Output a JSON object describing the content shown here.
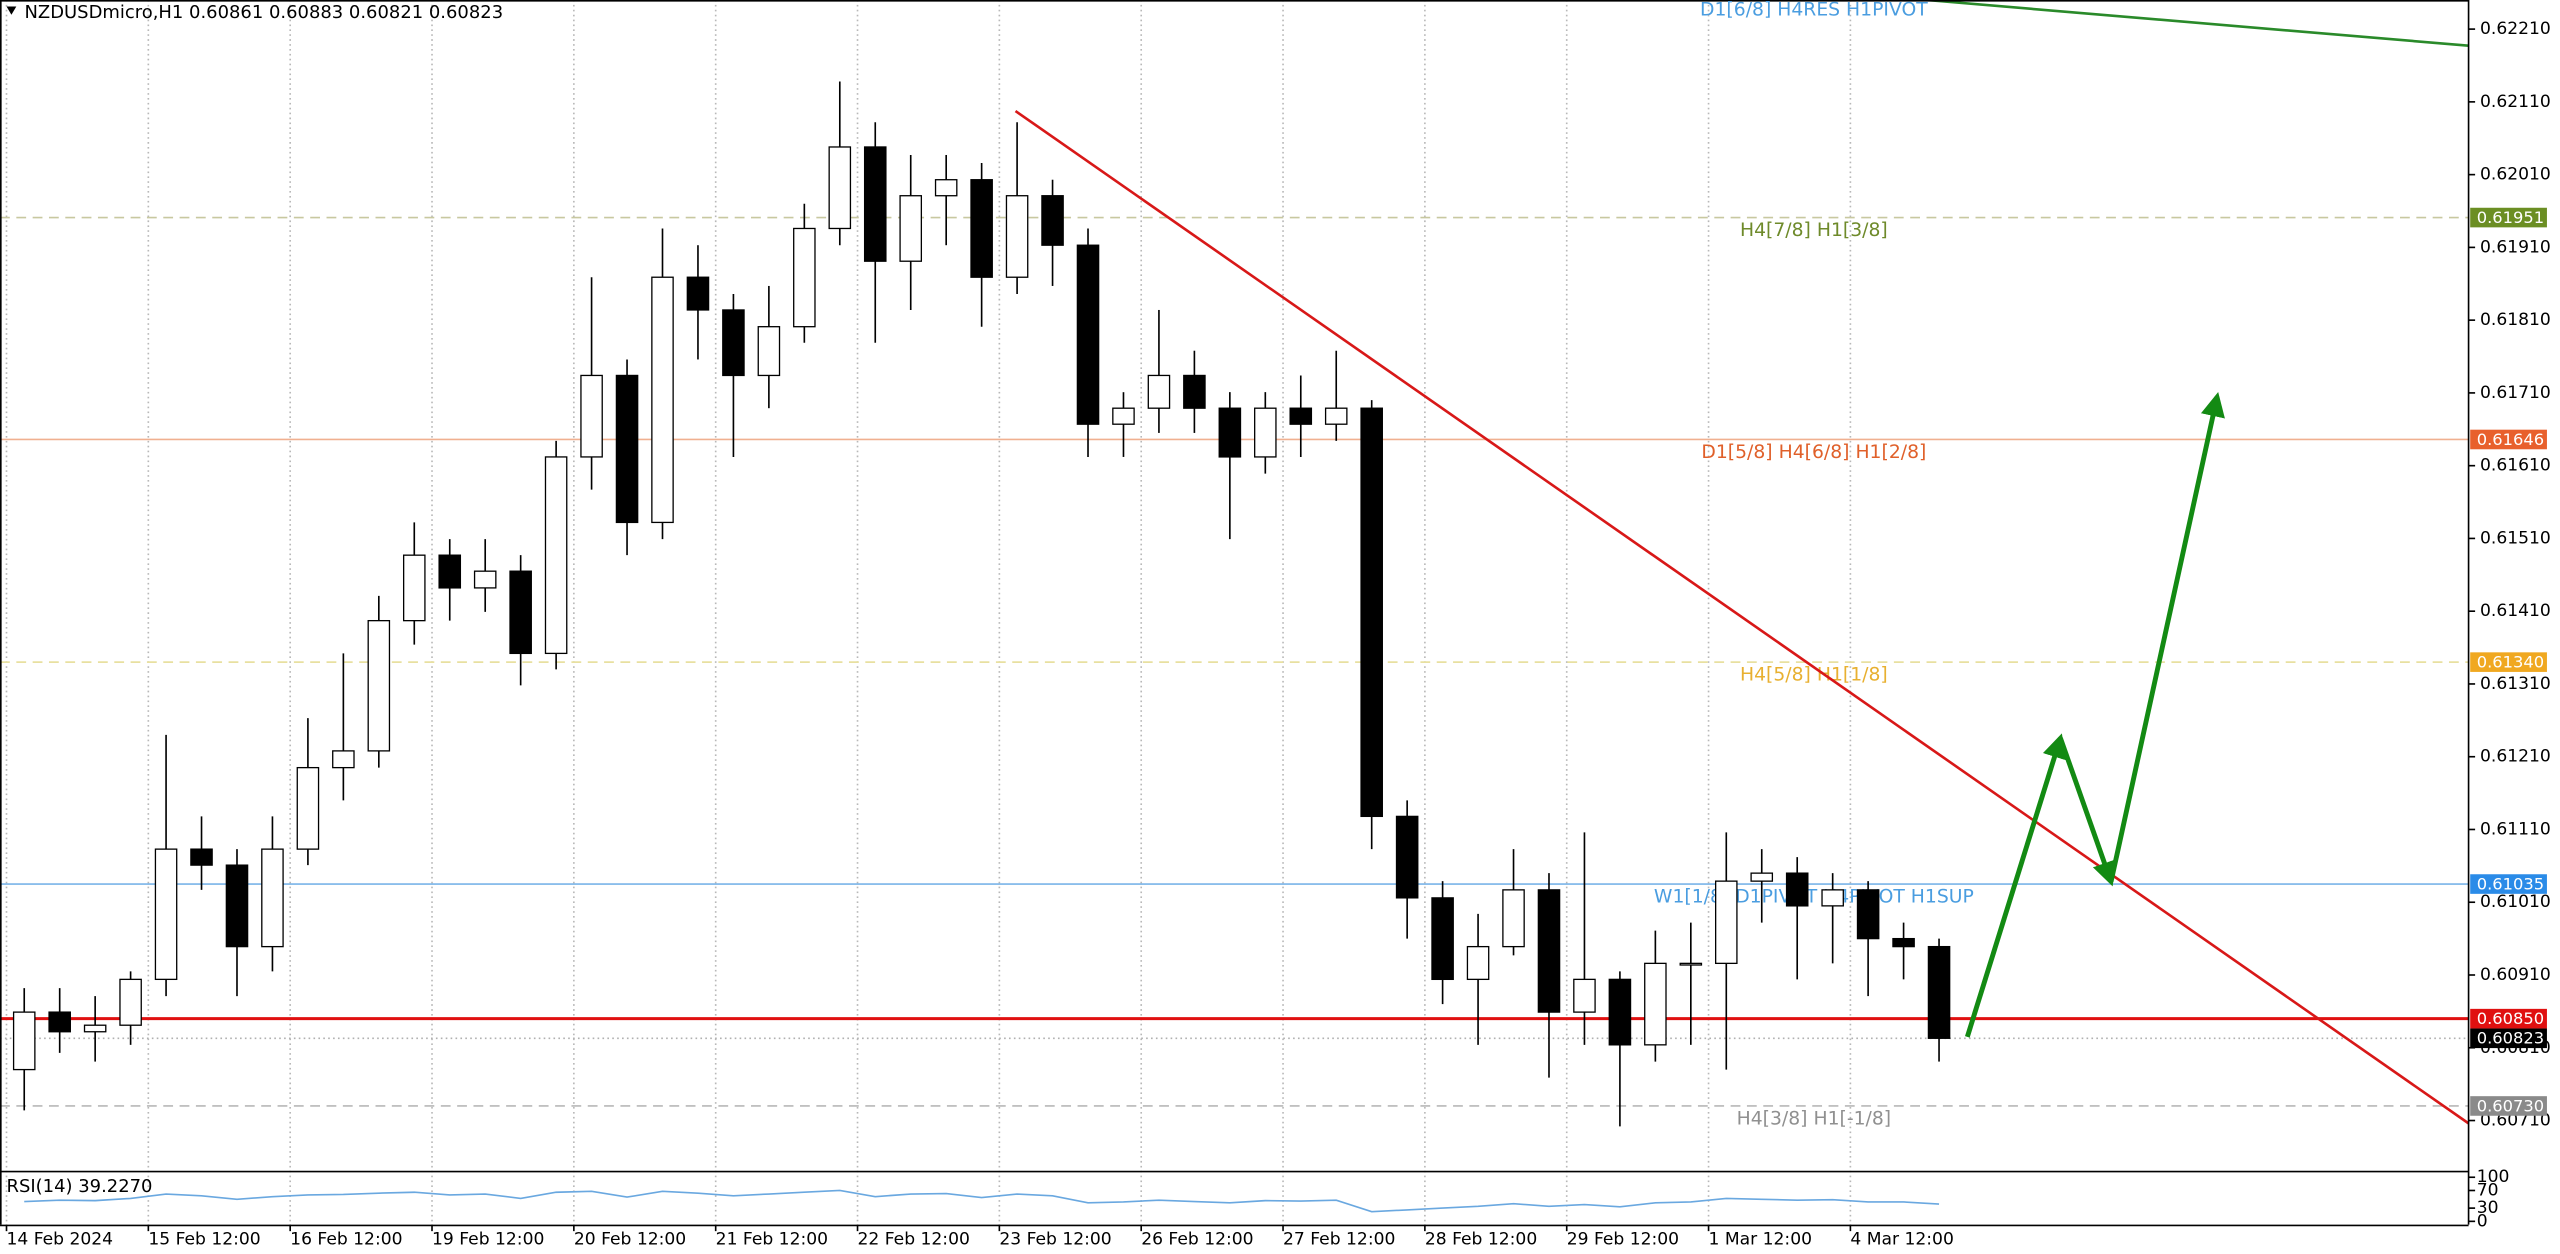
{
  "chart_data": {
    "type": "candlestick",
    "title": "NZDUSDmicro,H1  0.60861 0.60883 0.60821 0.60823",
    "x": [
      3,
      9,
      15,
      21,
      27,
      33,
      39,
      45,
      51,
      57,
      63,
      69,
      75,
      81,
      87,
      93,
      99,
      105,
      111,
      117,
      123,
      129,
      135,
      141,
      147,
      153,
      159,
      165,
      171,
      177,
      183,
      189,
      195,
      201,
      207,
      213,
      219,
      225,
      231,
      237,
      243,
      249,
      255,
      261,
      267,
      273,
      279,
      285,
      291,
      297,
      303,
      309,
      315,
      321,
      327
    ],
    "open": [
      0.6078,
      0.60859,
      0.60832,
      0.60841,
      0.60904,
      0.61083,
      0.61061,
      0.60949,
      0.61083,
      0.61195,
      0.61218,
      0.61397,
      0.61487,
      0.61442,
      0.61465,
      0.61352,
      0.61622,
      0.61734,
      0.61532,
      0.61869,
      0.61824,
      0.61734,
      0.61801,
      0.61936,
      0.62048,
      0.61891,
      0.61981,
      0.62003,
      0.61869,
      0.61981,
      0.61913,
      0.61667,
      0.61689,
      0.61734,
      0.61689,
      0.61622,
      0.61689,
      0.61667,
      0.61689,
      0.61128,
      0.61016,
      0.60904,
      0.60949,
      0.61027,
      0.60859,
      0.60904,
      0.60814,
      0.60926,
      0.60926,
      0.61039,
      0.6105,
      0.61005,
      0.61027,
      0.6096,
      0.60949
    ],
    "high": [
      0.60892,
      0.60892,
      0.60881,
      0.60915,
      0.6124,
      0.61128,
      0.61083,
      0.61128,
      0.61263,
      0.61352,
      0.61431,
      0.61532,
      0.61509,
      0.61509,
      0.61487,
      0.61644,
      0.61869,
      0.61756,
      0.61936,
      0.61913,
      0.61846,
      0.61857,
      0.6197,
      0.62138,
      0.62082,
      0.62037,
      0.62037,
      0.62026,
      0.62082,
      0.62003,
      0.61936,
      0.61711,
      0.61824,
      0.61768,
      0.61711,
      0.61711,
      0.61734,
      0.61768,
      0.617,
      0.6115,
      0.61039,
      0.60994,
      0.61083,
      0.6105,
      0.61106,
      0.60915,
      0.60971,
      0.60982,
      0.61106,
      0.61083,
      0.61072,
      0.6105,
      0.61039,
      0.60982,
      0.6096
    ],
    "low": [
      0.60724,
      0.60803,
      0.60791,
      0.60814,
      0.60881,
      0.61027,
      0.60881,
      0.60915,
      0.61061,
      0.6115,
      0.61195,
      0.61364,
      0.61397,
      0.61409,
      0.61308,
      0.6133,
      0.61577,
      0.61487,
      0.61509,
      0.61756,
      0.61622,
      0.61689,
      0.61779,
      0.61913,
      0.61779,
      0.61824,
      0.61913,
      0.61801,
      0.61846,
      0.61857,
      0.61622,
      0.61622,
      0.61655,
      0.61655,
      0.61509,
      0.61599,
      0.61622,
      0.61644,
      0.61083,
      0.6096,
      0.6087,
      0.60814,
      0.60937,
      0.60769,
      0.60814,
      0.60702,
      0.60791,
      0.60814,
      0.6078,
      0.60982,
      0.60904,
      0.60926,
      0.60881,
      0.60904,
      0.60791
    ],
    "close": [
      0.60859,
      0.60832,
      0.60841,
      0.60904,
      0.61083,
      0.61061,
      0.60949,
      0.61083,
      0.61195,
      0.61218,
      0.61397,
      0.61487,
      0.61442,
      0.61465,
      0.61352,
      0.61622,
      0.61734,
      0.61532,
      0.61869,
      0.61824,
      0.61734,
      0.61801,
      0.61936,
      0.62048,
      0.61891,
      0.61981,
      0.62003,
      0.61869,
      0.61981,
      0.61913,
      0.61667,
      0.61689,
      0.61734,
      0.61689,
      0.61622,
      0.61689,
      0.61667,
      0.61689,
      0.61128,
      0.61016,
      0.60904,
      0.60949,
      0.61027,
      0.60859,
      0.60904,
      0.60814,
      0.60926,
      0.60926,
      0.61039,
      0.6105,
      0.61005,
      0.61027,
      0.6096,
      0.60949,
      0.60823
    ],
    "up_color": "#ffffff",
    "down_color": "#000000",
    "xlim": [
      -1.1,
      416.6
    ],
    "xticks": [
      {
        "value": 0,
        "label": "14 Feb 2024"
      },
      {
        "value": 24,
        "label": "15 Feb 12:00"
      },
      {
        "value": 48,
        "label": "16 Feb 12:00"
      },
      {
        "value": 72,
        "label": "19 Feb 12:00"
      },
      {
        "value": 96,
        "label": "20 Feb 12:00"
      },
      {
        "value": 120,
        "label": "21 Feb 12:00"
      },
      {
        "value": 144,
        "label": "22 Feb 12:00"
      },
      {
        "value": 168,
        "label": "23 Feb 12:00"
      },
      {
        "value": 192,
        "label": "26 Feb 12:00"
      },
      {
        "value": 216,
        "label": "27 Feb 12:00"
      },
      {
        "value": 240,
        "label": "28 Feb 12:00"
      },
      {
        "value": 264,
        "label": "29 Feb 12:00"
      },
      {
        "value": 288,
        "label": "1 Mar 12:00"
      },
      {
        "value": 312,
        "label": "4 Mar 12:00"
      }
    ],
    "ylim": [
      0.60641,
      0.6225
    ],
    "yticks": [
      {
        "value": 0.6221,
        "label": "0.62210"
      },
      {
        "value": 0.6211,
        "label": "0.62110"
      },
      {
        "value": 0.6201,
        "label": "0.62010"
      },
      {
        "value": 0.6191,
        "label": "0.61910"
      },
      {
        "value": 0.6181,
        "label": "0.61810"
      },
      {
        "value": 0.6171,
        "label": "0.61710"
      },
      {
        "value": 0.6161,
        "label": "0.61610"
      },
      {
        "value": 0.6151,
        "label": "0.61510"
      },
      {
        "value": 0.6141,
        "label": "0.61410"
      },
      {
        "value": 0.6131,
        "label": "0.61310"
      },
      {
        "value": 0.6121,
        "label": "0.61210"
      },
      {
        "value": 0.6111,
        "label": "0.61110"
      },
      {
        "value": 0.6101,
        "label": "0.61010"
      },
      {
        "value": 0.6091,
        "label": "0.60910"
      },
      {
        "value": 0.6081,
        "label": "0.60810"
      },
      {
        "value": 0.6071,
        "label": "0.60710"
      }
    ],
    "grid": true,
    "top_label": "D1[6/8] H4RES H1PIVOT",
    "levels": [
      {
        "price": 0.61951,
        "text": "H4[7/8] H1[3/8]",
        "line_color": "#c8c8a0",
        "text_color": "#6e8a2a",
        "box_color": "#6b8e23",
        "style": "dashed"
      },
      {
        "price": 0.61646,
        "text": "D1[5/8] H4[6/8] H1[2/8]",
        "line_color": "#f0b090",
        "text_color": "#e0602a",
        "box_color": "#e8602c",
        "style": "solid"
      },
      {
        "price": {
          "value": 0.6134,
          "label": "0.61340"
        },
        "text": "H4[5/8] H1[1/8]",
        "line_color": "#e8e0a0",
        "text_color": "#e8b030",
        "box_color": "#f0a820",
        "style": "dashed"
      },
      {
        "price": 0.61035,
        "text": "W1[1/8] D1PIVOT H4PIVOT H1SUP",
        "line_color": "#7ab4e8",
        "text_color": "#4a9de0",
        "box_color": "#2a8be8",
        "style": "solid"
      },
      {
        "price": {
          "value": 0.6085,
          "label": "0.60850"
        },
        "line_color": "#e01010",
        "box_color": "#e01010",
        "style": "bold"
      },
      {
        "price": 0.60823,
        "line_color": "#b0b0b0",
        "box_color": "#000000",
        "style": "dotted"
      },
      {
        "price": {
          "value": 0.6073,
          "label": "0.60730"
        },
        "text": "H4[3/8] H1[-1/8]",
        "line_color": "#b8b8b8",
        "text_color": "#909090",
        "box_color": "#8a8a8a",
        "style": "dashed"
      }
    ],
    "rsi": {
      "label": "RSI(14) 39.2270",
      "color": "#6aa8e0",
      "values": [
        45,
        48,
        47,
        52,
        62,
        58,
        50,
        56,
        60,
        61,
        64,
        66,
        60,
        62,
        52,
        66,
        68,
        55,
        68,
        64,
        58,
        62,
        66,
        70,
        56,
        62,
        63,
        54,
        62,
        58,
        42,
        44,
        48,
        45,
        42,
        47,
        46,
        48,
        22,
        26,
        30,
        34,
        40,
        34,
        38,
        33,
        42,
        44,
        52,
        50,
        48,
        49,
        44,
        44,
        39.227
      ],
      "ylim": [
        0,
        100
      ],
      "yticks": [
        100,
        70,
        30,
        0
      ]
    }
  }
}
